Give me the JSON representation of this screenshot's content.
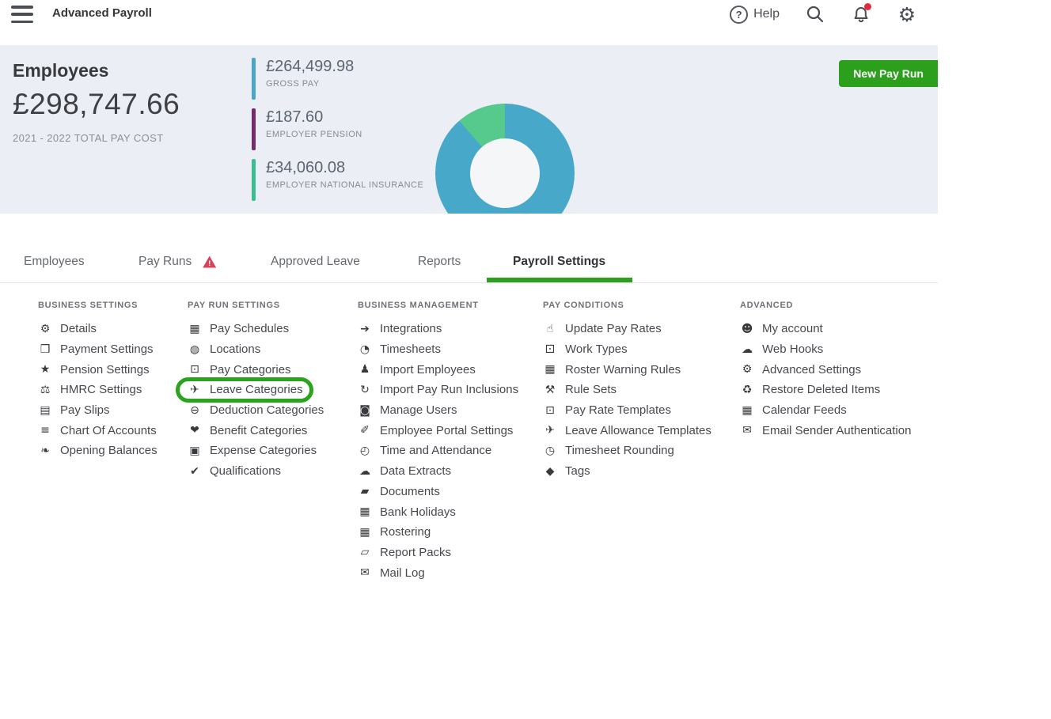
{
  "topbar": {
    "title": "Advanced Payroll",
    "help_label": "Help",
    "help_glyph": "?"
  },
  "summary": {
    "heading": "Employees",
    "total": "£298,747.66",
    "caption": "2021 - 2022 TOTAL PAY COST",
    "new_pay_run_label": "New Pay Run",
    "stats": [
      {
        "amount": "£264,499.98",
        "label": "GROSS PAY",
        "color": "#4aa6c4"
      },
      {
        "amount": "£187.60",
        "label": "EMPLOYER PENSION",
        "color": "#722c6c"
      },
      {
        "amount": "£34,060.08",
        "label": "EMPLOYER NATIONAL INSURANCE",
        "color": "#3cbd90"
      }
    ]
  },
  "chart_data": {
    "type": "pie",
    "title": "Pay cost composition donut",
    "segments": [
      {
        "label": "Gross Pay",
        "color": "#47a8ca",
        "percent": 88.6
      },
      {
        "label": "Employer National Insurance",
        "color": "#55ca8c",
        "percent": 11.4
      }
    ]
  },
  "tabs": [
    {
      "label": "Employees"
    },
    {
      "label": "Pay Runs",
      "warning": true
    },
    {
      "label": "Approved Leave"
    },
    {
      "label": "Reports"
    },
    {
      "label": "Payroll Settings",
      "active": true
    }
  ],
  "colors": {
    "accent_green": "#2ca01c",
    "annotation_green": "#2aa31f",
    "warning_red": "#d9435a",
    "notification_red": "#e02b3f",
    "summary_bg": "#ebeef4",
    "chevron_blue": "#3f5ed0"
  },
  "icon_glyphs": {
    "gear": "⚙",
    "payment": "❒",
    "star": "★",
    "scales": "⚖",
    "payslip": "▤",
    "list": "≡",
    "leaf": "❧",
    "calendar": "▦",
    "globe": "◍",
    "banknote": "⊡",
    "plane": "✈",
    "minus-circle": "⊖",
    "heart": "❤",
    "wallet": "▣",
    "check": "✔",
    "integration": "➔",
    "clock": "◔",
    "people": "♟",
    "sync": "↻",
    "lock": "◙",
    "wand": "✐",
    "stopwatch": "◴",
    "cloud": "☁",
    "folder": "▰",
    "folder-open": "▱",
    "mail": "✉",
    "hand-coin": "☝",
    "camera": "⚀",
    "calendar-warning": "▦",
    "gavel": "⚒",
    "clock-outline": "◷",
    "tag": "◆",
    "person": "☻",
    "recycle": "♻"
  },
  "menu": {
    "columns": [
      {
        "heading": "BUSINESS SETTINGS",
        "items": [
          {
            "label": "Details",
            "icon": "gear"
          },
          {
            "label": "Payment Settings",
            "icon": "payment"
          },
          {
            "label": "Pension Settings",
            "icon": "star"
          },
          {
            "label": "HMRC Settings",
            "icon": "scales"
          },
          {
            "label": "Pay Slips",
            "icon": "payslip"
          },
          {
            "label": "Chart Of Accounts",
            "icon": "list"
          },
          {
            "label": "Opening Balances",
            "icon": "leaf"
          }
        ]
      },
      {
        "heading": "PAY RUN SETTINGS",
        "items": [
          {
            "label": "Pay Schedules",
            "icon": "calendar"
          },
          {
            "label": "Locations",
            "icon": "globe"
          },
          {
            "label": "Pay Categories",
            "icon": "banknote"
          },
          {
            "label": "Leave Categories",
            "icon": "plane",
            "circled": true
          },
          {
            "label": "Deduction Categories",
            "icon": "minus-circle"
          },
          {
            "label": "Benefit Categories",
            "icon": "heart"
          },
          {
            "label": "Expense Categories",
            "icon": "wallet"
          },
          {
            "label": "Qualifications",
            "icon": "check"
          }
        ]
      },
      {
        "heading": "BUSINESS MANAGEMENT",
        "items": [
          {
            "label": "Integrations",
            "icon": "integration"
          },
          {
            "label": "Timesheets",
            "icon": "clock"
          },
          {
            "label": "Import Employees",
            "icon": "people"
          },
          {
            "label": "Import Pay Run Inclusions",
            "icon": "sync"
          },
          {
            "label": "Manage Users",
            "icon": "lock"
          },
          {
            "label": "Employee Portal Settings",
            "icon": "wand"
          },
          {
            "label": "Time and Attendance",
            "icon": "stopwatch"
          },
          {
            "label": "Data Extracts",
            "icon": "cloud"
          },
          {
            "label": "Documents",
            "icon": "folder"
          },
          {
            "label": "Bank Holidays",
            "icon": "calendar"
          },
          {
            "label": "Rostering",
            "icon": "calendar"
          },
          {
            "label": "Report Packs",
            "icon": "folder-open"
          },
          {
            "label": "Mail Log",
            "icon": "mail"
          }
        ]
      },
      {
        "heading": "PAY CONDITIONS",
        "items": [
          {
            "label": "Update Pay Rates",
            "icon": "hand-coin"
          },
          {
            "label": "Work Types",
            "icon": "camera"
          },
          {
            "label": "Roster Warning Rules",
            "icon": "calendar-warning"
          },
          {
            "label": "Rule Sets",
            "icon": "gavel"
          },
          {
            "label": "Pay Rate Templates",
            "icon": "banknote"
          },
          {
            "label": "Leave Allowance Templates",
            "icon": "plane"
          },
          {
            "label": "Timesheet Rounding",
            "icon": "clock-outline"
          },
          {
            "label": "Tags",
            "icon": "tag"
          }
        ]
      },
      {
        "heading": "ADVANCED",
        "items": [
          {
            "label": "My account",
            "icon": "person"
          },
          {
            "label": "Web Hooks",
            "icon": "cloud"
          },
          {
            "label": "Advanced Settings",
            "icon": "gear"
          },
          {
            "label": "Restore Deleted Items",
            "icon": "recycle"
          },
          {
            "label": "Calendar Feeds",
            "icon": "calendar"
          },
          {
            "label": "Email Sender Authentication",
            "icon": "mail"
          }
        ]
      }
    ]
  }
}
